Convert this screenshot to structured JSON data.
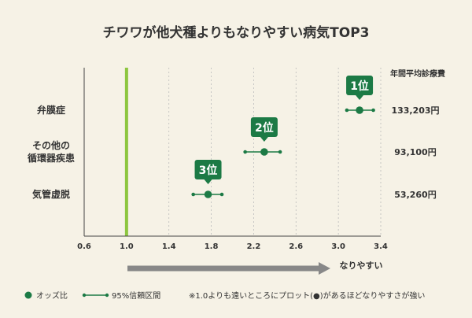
{
  "chart_data": {
    "type": "forest-plot",
    "title": "チワワが他犬種よりもなりやすい病気TOP3",
    "value_header": "年間平均診療費",
    "xlim": [
      0.6,
      3.4
    ],
    "xticks": [
      "0.6",
      "1.0",
      "1.4",
      "1.8",
      "2.2",
      "2.6",
      "3.0",
      "3.4"
    ],
    "reference_line": 1.0,
    "arrow_label": "なりやすい",
    "rows": [
      {
        "label_lines": [
          "弁膜症"
        ],
        "odds": 3.2,
        "ci": [
          3.08,
          3.33
        ],
        "rank": "1位",
        "cost": "133,203円"
      },
      {
        "label_lines": [
          "その他の",
          "循環器疾患"
        ],
        "odds": 2.3,
        "ci": [
          2.12,
          2.45
        ],
        "rank": "2位",
        "cost": "93,100円"
      },
      {
        "label_lines": [
          "気管虚脱"
        ],
        "odds": 1.77,
        "ci": [
          1.63,
          1.9
        ],
        "rank": "3位",
        "cost": "53,260円"
      }
    ],
    "legend": {
      "point": "オッズ比",
      "ci": "95%信頼区間"
    },
    "footnote": "※1.0よりも遠いところにプロット(●)があるほどなりやすさが強い",
    "colors": {
      "point": "#1c7a45",
      "ref": "#8dc63f",
      "arrow": "#888888",
      "axis": "#444444",
      "grid": "#bbbbbb"
    }
  }
}
